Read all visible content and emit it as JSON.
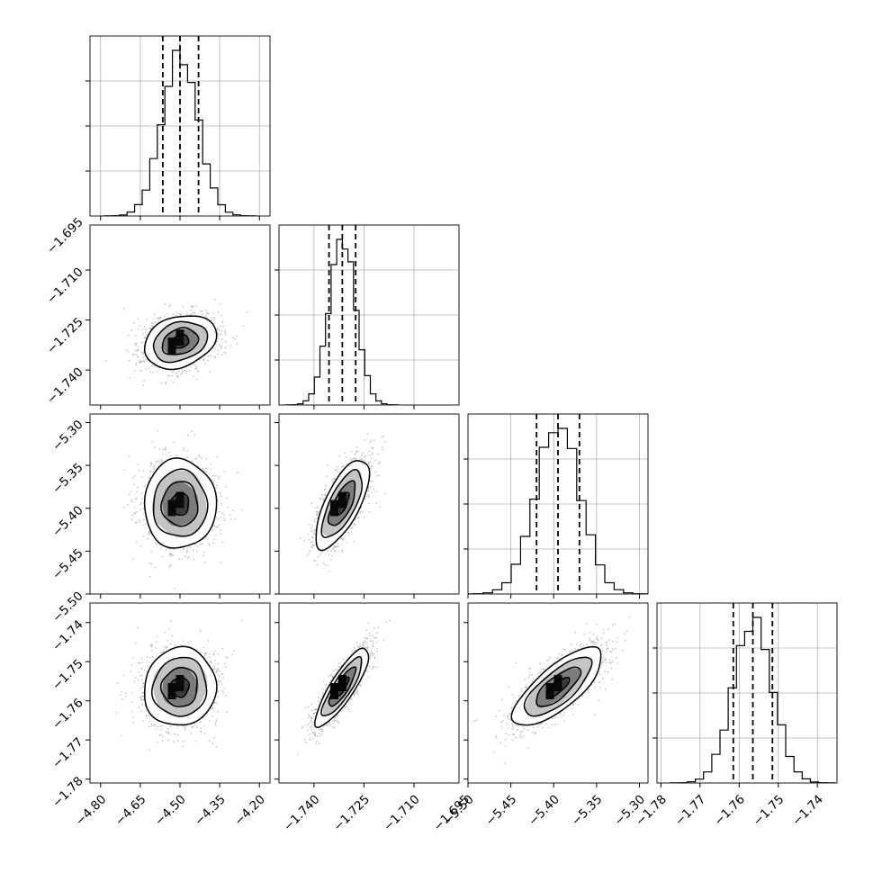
{
  "chart_data": {
    "type": "corner",
    "grid": true,
    "params": [
      {
        "mean": -4.5,
        "sd": 0.068,
        "range": [
          -4.84,
          -4.16
        ],
        "ticks": [
          {
            "v": -4.8,
            "label": "−4.80"
          },
          {
            "v": -4.65,
            "label": "−4.65"
          },
          {
            "v": -4.5,
            "label": "−4.50"
          },
          {
            "v": -4.35,
            "label": "−4.35"
          },
          {
            "v": -4.2,
            "label": "−4.20"
          }
        ],
        "quantiles": [
          -4.565,
          -4.5,
          -4.43
        ]
      },
      {
        "mean": -1.7315,
        "sd": 0.004,
        "range": [
          -1.7505,
          -1.6965
        ],
        "ticks": [
          {
            "v": -1.74,
            "label": "−1.740"
          },
          {
            "v": -1.725,
            "label": "−1.725"
          },
          {
            "v": -1.71,
            "label": "−1.710"
          },
          {
            "v": -1.695,
            "label": "−1.695"
          }
        ],
        "quantiles": [
          -1.7355,
          -1.7315,
          -1.7275
        ]
      },
      {
        "mean": -5.395,
        "sd": 0.026,
        "range": [
          -5.5,
          -5.29
        ],
        "ticks": [
          {
            "v": -5.3,
            "label": "−5.30"
          },
          {
            "v": -5.35,
            "label": "−5.35"
          },
          {
            "v": -5.4,
            "label": "−5.40"
          },
          {
            "v": -5.45,
            "label": "−5.45"
          },
          {
            "v": -5.5,
            "label": "−5.50"
          }
        ],
        "quantiles": [
          -5.42,
          -5.395,
          -5.37
        ]
      },
      {
        "mean": -1.7565,
        "sd": 0.005,
        "range": [
          -1.781,
          -1.735
        ],
        "ticks": [
          {
            "v": -1.74,
            "label": "−1.74"
          },
          {
            "v": -1.75,
            "label": "−1.75"
          },
          {
            "v": -1.76,
            "label": "−1.76"
          },
          {
            "v": -1.77,
            "label": "−1.77"
          },
          {
            "v": -1.78,
            "label": "−1.78"
          }
        ],
        "quantiles": [
          -1.7615,
          -1.7565,
          -1.7515
        ]
      }
    ],
    "correlations": [
      {
        "pair": [
          0,
          1
        ],
        "rho": 0.25
      },
      {
        "pair": [
          0,
          2
        ],
        "rho": 0.0
      },
      {
        "pair": [
          0,
          3
        ],
        "rho": 0.05
      },
      {
        "pair": [
          1,
          2
        ],
        "rho": 0.7
      },
      {
        "pair": [
          1,
          3
        ],
        "rho": 0.85
      },
      {
        "pair": [
          2,
          3
        ],
        "rho": 0.75
      }
    ]
  }
}
